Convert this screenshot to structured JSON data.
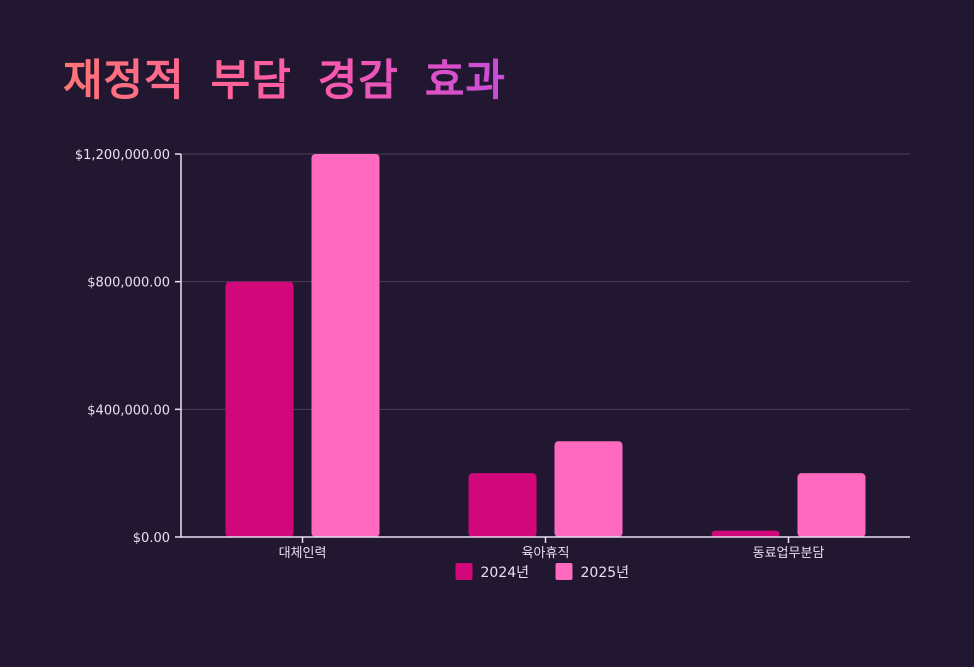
{
  "title": "재정적 부담 경감 효과",
  "colors": {
    "background": "#221730",
    "series_2024": "#d1077a",
    "series_2025": "#ff69bf",
    "grid": "#4a3d5a",
    "axis": "#e8dff0"
  },
  "chart_data": {
    "type": "bar",
    "categories": [
      "대체인력",
      "육아휴직",
      "동료업무분담"
    ],
    "series": [
      {
        "name": "2024년",
        "values": [
          800000,
          200000,
          20000
        ]
      },
      {
        "name": "2025년",
        "values": [
          1200000,
          300000,
          200000
        ]
      }
    ],
    "y_ticks": [
      0,
      400000,
      800000,
      1200000
    ],
    "y_tick_labels": [
      "$0.00",
      "$400,000.00",
      "$800,000.00",
      "$1,200,000.00"
    ],
    "ylim": [
      0,
      1200000
    ],
    "grid": true,
    "legend_position": "bottom"
  }
}
